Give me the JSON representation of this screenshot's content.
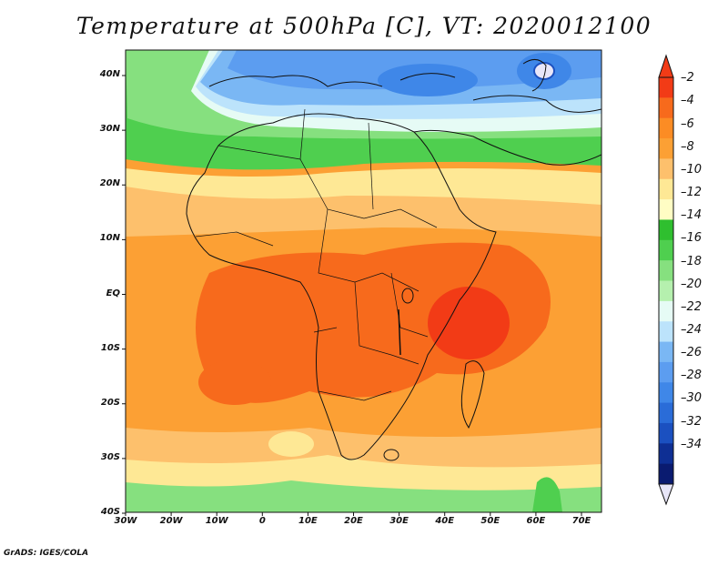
{
  "title": "Temperature at 500hPa [C], VT: 2020012100",
  "credit": "GrADS: IGES/COLA",
  "map": {
    "lon_labels": [
      "30W",
      "20W",
      "10W",
      "0",
      "10E",
      "20E",
      "30E",
      "40E",
      "50E",
      "60E",
      "70E"
    ],
    "lat_labels": [
      "40N",
      "30N",
      "20N",
      "10N",
      "EQ",
      "10S",
      "20S",
      "30S",
      "40S"
    ],
    "field_regions": [
      {
        "name": "cold-core-north",
        "color": "#3f87e8"
      },
      {
        "name": "cold-band",
        "color": "#7ab7f4"
      },
      {
        "name": "green-band",
        "color": "#4fcf4f"
      },
      {
        "name": "yellow-band",
        "color": "#fee895"
      },
      {
        "name": "orange-tropics",
        "color": "#fca034"
      },
      {
        "name": "warm-core",
        "color": "#f76a1c"
      },
      {
        "name": "south-green",
        "color": "#4fcf4f"
      }
    ]
  },
  "colorbar": {
    "labels": [
      "-2",
      "-4",
      "-6",
      "-8",
      "-10",
      "-12",
      "-14",
      "-16",
      "-18",
      "-20",
      "-22",
      "-24",
      "-26",
      "-28",
      "-30",
      "-32",
      "-34"
    ],
    "colors": [
      "#f23b16",
      "#f76a1c",
      "#fc8c24",
      "#fca034",
      "#fdc06c",
      "#fee895",
      "#fffdc4",
      "#2fbf2f",
      "#4fcf4f",
      "#86e07f",
      "#b5f0ae",
      "#e6fbf5",
      "#bce3fb",
      "#7ab7f4",
      "#5c9df0",
      "#3f87e8",
      "#2a6cd8",
      "#1b50c0",
      "#0e2f94",
      "#0a1b70"
    ],
    "min_arrow_color": "#e8e6f8"
  }
}
